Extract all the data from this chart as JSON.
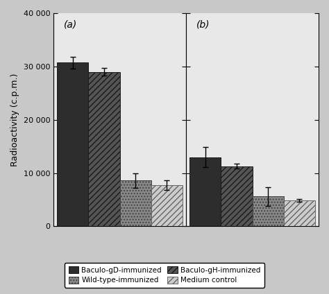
{
  "ylabel": "Radioactivity (c.p.m.)",
  "ylim": [
    0,
    40000
  ],
  "yticks": [
    0,
    10000,
    20000,
    30000,
    40000
  ],
  "ytick_labels": [
    "0",
    "10 000",
    "20 000",
    "30 000",
    "40 000"
  ],
  "panel_labels": [
    "(a)",
    "(b)"
  ],
  "series": [
    {
      "name": "Baculo-gD-immunized",
      "values_a": 30700,
      "values_b": 13000,
      "error_a": 1100,
      "error_b": 1900,
      "facecolor": "#2d2d2d",
      "hatch": null,
      "edgecolor": "#1a1a1a"
    },
    {
      "name": "Baculo-gH-immunized",
      "values_a": 29000,
      "values_b": 11300,
      "error_a": 700,
      "error_b": 500,
      "facecolor": "#555555",
      "hatch": "////",
      "edgecolor": "#1a1a1a"
    },
    {
      "name": "Wild-type-immunized",
      "values_a": 8600,
      "values_b": 5600,
      "error_a": 1400,
      "error_b": 1700,
      "facecolor": "#888888",
      "hatch": "....",
      "edgecolor": "#444444"
    },
    {
      "name": "Medium control",
      "values_a": 7700,
      "values_b": 4900,
      "error_a": 900,
      "error_b": 300,
      "facecolor": "#cccccc",
      "hatch": "////",
      "edgecolor": "#666666"
    }
  ],
  "bar_width": 0.18,
  "bg_color": "#e8e8e8",
  "legend_order": [
    "Baculo-gD-immunized",
    "Wild-type-immunized",
    "Baculo-gH-immunized",
    "Medium control"
  ],
  "legend_colors": [
    "#2d2d2d",
    "#888888",
    "#555555",
    "#cccccc"
  ],
  "legend_hatches": [
    null,
    "....",
    "////",
    "////"
  ],
  "legend_edgecolors": [
    "#1a1a1a",
    "#444444",
    "#1a1a1a",
    "#666666"
  ],
  "tick_fontsize": 8,
  "label_fontsize": 9
}
